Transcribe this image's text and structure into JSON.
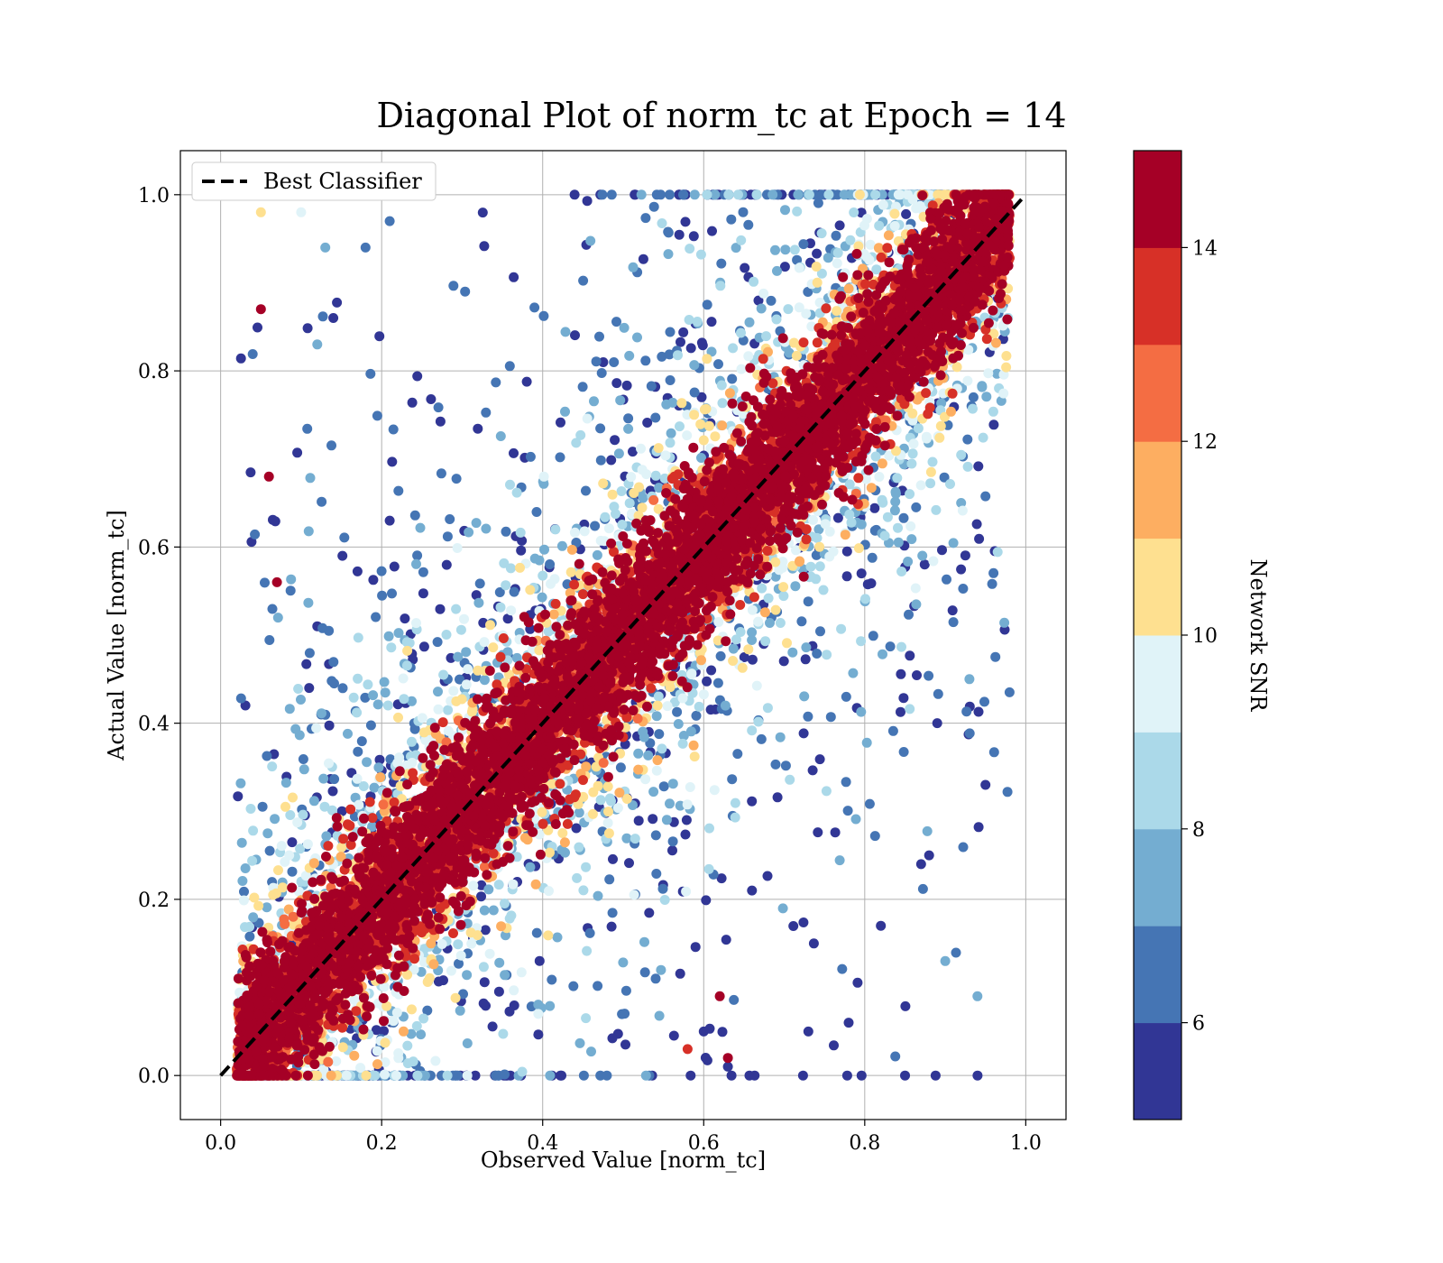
{
  "chart_data": {
    "type": "scatter",
    "title": "Diagonal Plot of norm_tc at Epoch = 14",
    "xlabel": "Observed Value [norm_tc]",
    "ylabel": "Actual Value [norm_tc]",
    "xlim": [
      -0.05,
      1.05
    ],
    "ylim": [
      -0.05,
      1.05
    ],
    "xticks": [
      "0.0",
      "0.2",
      "0.4",
      "0.6",
      "0.8",
      "1.0"
    ],
    "yticks": [
      "0.0",
      "0.2",
      "0.4",
      "0.6",
      "0.8",
      "1.0"
    ],
    "grid": true,
    "legend": {
      "placement": "upper-left",
      "entries": [
        "Best Classifier"
      ]
    },
    "reference_line": {
      "name": "Best Classifier",
      "x": [
        0,
        1
      ],
      "y": [
        0,
        1
      ],
      "style": "dashed",
      "color": "#000000"
    },
    "colorbar": {
      "label": "Network SNR",
      "range": [
        5,
        15
      ],
      "ticks": [
        "6",
        "8",
        "10",
        "12",
        "14"
      ],
      "levels": 10,
      "colors": [
        "#313695",
        "#4575b4",
        "#74add1",
        "#abd9e9",
        "#e0f3f8",
        "#fee090",
        "#fdae61",
        "#f46d43",
        "#d73027",
        "#a50026"
      ]
    },
    "points_description": "Dense band of high-SNR (dark red) points along the diagonal from (0,0) to (1,1); low-SNR (blue) points scattered away from the diagonal, concentrated in upper-middle and lower-middle regions.",
    "scatter_samples": {
      "x": [
        0.05,
        0.1,
        0.13,
        0.18,
        0.21,
        0.05,
        0.07,
        0.14,
        0.06,
        0.12,
        0.12,
        0.11,
        0.21,
        0.63,
        0.73,
        0.85,
        0.94,
        0.9,
        0.87,
        0.82,
        0.78,
        0.62,
        0.6,
        0.63,
        0.66,
        0.89,
        0.88,
        0.93,
        0.95,
        0.58
      ],
      "y": [
        0.98,
        0.98,
        0.94,
        0.94,
        0.97,
        0.87,
        0.56,
        0.86,
        0.68,
        0.83,
        0.51,
        0.44,
        0.63,
        0.02,
        0.05,
        0.0,
        0.09,
        0.13,
        0.24,
        0.17,
        0.06,
        0.09,
        0.05,
        0.01,
        0.21,
        0.4,
        0.25,
        0.45,
        0.33,
        0.03
      ],
      "snr": [
        10,
        9,
        7,
        6,
        6,
        15,
        15,
        5,
        15,
        7,
        5,
        5,
        5,
        15,
        5,
        5,
        7,
        7,
        5,
        5,
        5,
        15,
        5,
        5,
        5,
        5,
        5,
        7,
        5,
        13
      ]
    }
  }
}
